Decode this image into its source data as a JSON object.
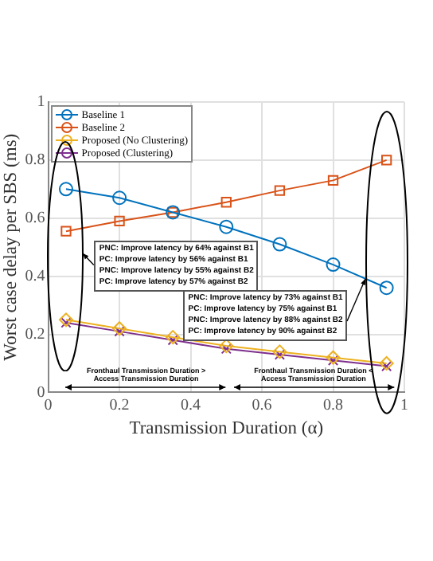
{
  "chart_data": {
    "type": "line",
    "xlabel": "Transmission Duration (α)",
    "ylabel": "Worst case delay per SBS (ms)",
    "x": [
      0.05,
      0.2,
      0.35,
      0.5,
      0.65,
      0.8,
      0.95
    ],
    "xlim": [
      0,
      1
    ],
    "xticks": [
      0,
      0.2,
      0.4,
      0.6,
      0.8,
      1
    ],
    "ylim": [
      0,
      1
    ],
    "yticks": [
      0,
      0.2,
      0.4,
      0.6,
      0.8,
      1
    ],
    "grid": true,
    "legend": "top left",
    "series": [
      {
        "name": "Baseline 1",
        "color": "#0072bd",
        "marker": "circle",
        "values": [
          0.7,
          0.67,
          0.62,
          0.57,
          0.51,
          0.44,
          0.36
        ]
      },
      {
        "name": "Baseline 2",
        "color": "#d95319",
        "marker": "square",
        "values": [
          0.555,
          0.59,
          0.62,
          0.655,
          0.695,
          0.73,
          0.8
        ]
      },
      {
        "name": "Proposed (No Clustering)",
        "color": "#edb120",
        "marker": "diamond",
        "values": [
          0.25,
          0.22,
          0.19,
          0.16,
          0.14,
          0.12,
          0.1
        ]
      },
      {
        "name": "Proposed (Clustering)",
        "color": "#7e2f8e",
        "marker": "cross",
        "values": [
          0.24,
          0.21,
          0.18,
          0.15,
          0.13,
          0.11,
          0.09
        ]
      }
    ],
    "annotations": [
      "PNC: Improve latency by 64% against B1",
      "PC: Improve latency by 56% against B1",
      "PNC: Improve latency by 55% against B2",
      "PC: Improve latency by 57% against B2",
      "PNC: Improve latency by 73% against B1",
      "PC: Improve latency by 75% against B1",
      "PNC: Improve latency by 88% against B2",
      "PC: Improve latency by 90% against B2",
      "Fronthaul Transmission Duration > Access Transmission Duration",
      "Fronthaul Transmission Duration < Access Transmission Duration"
    ]
  }
}
